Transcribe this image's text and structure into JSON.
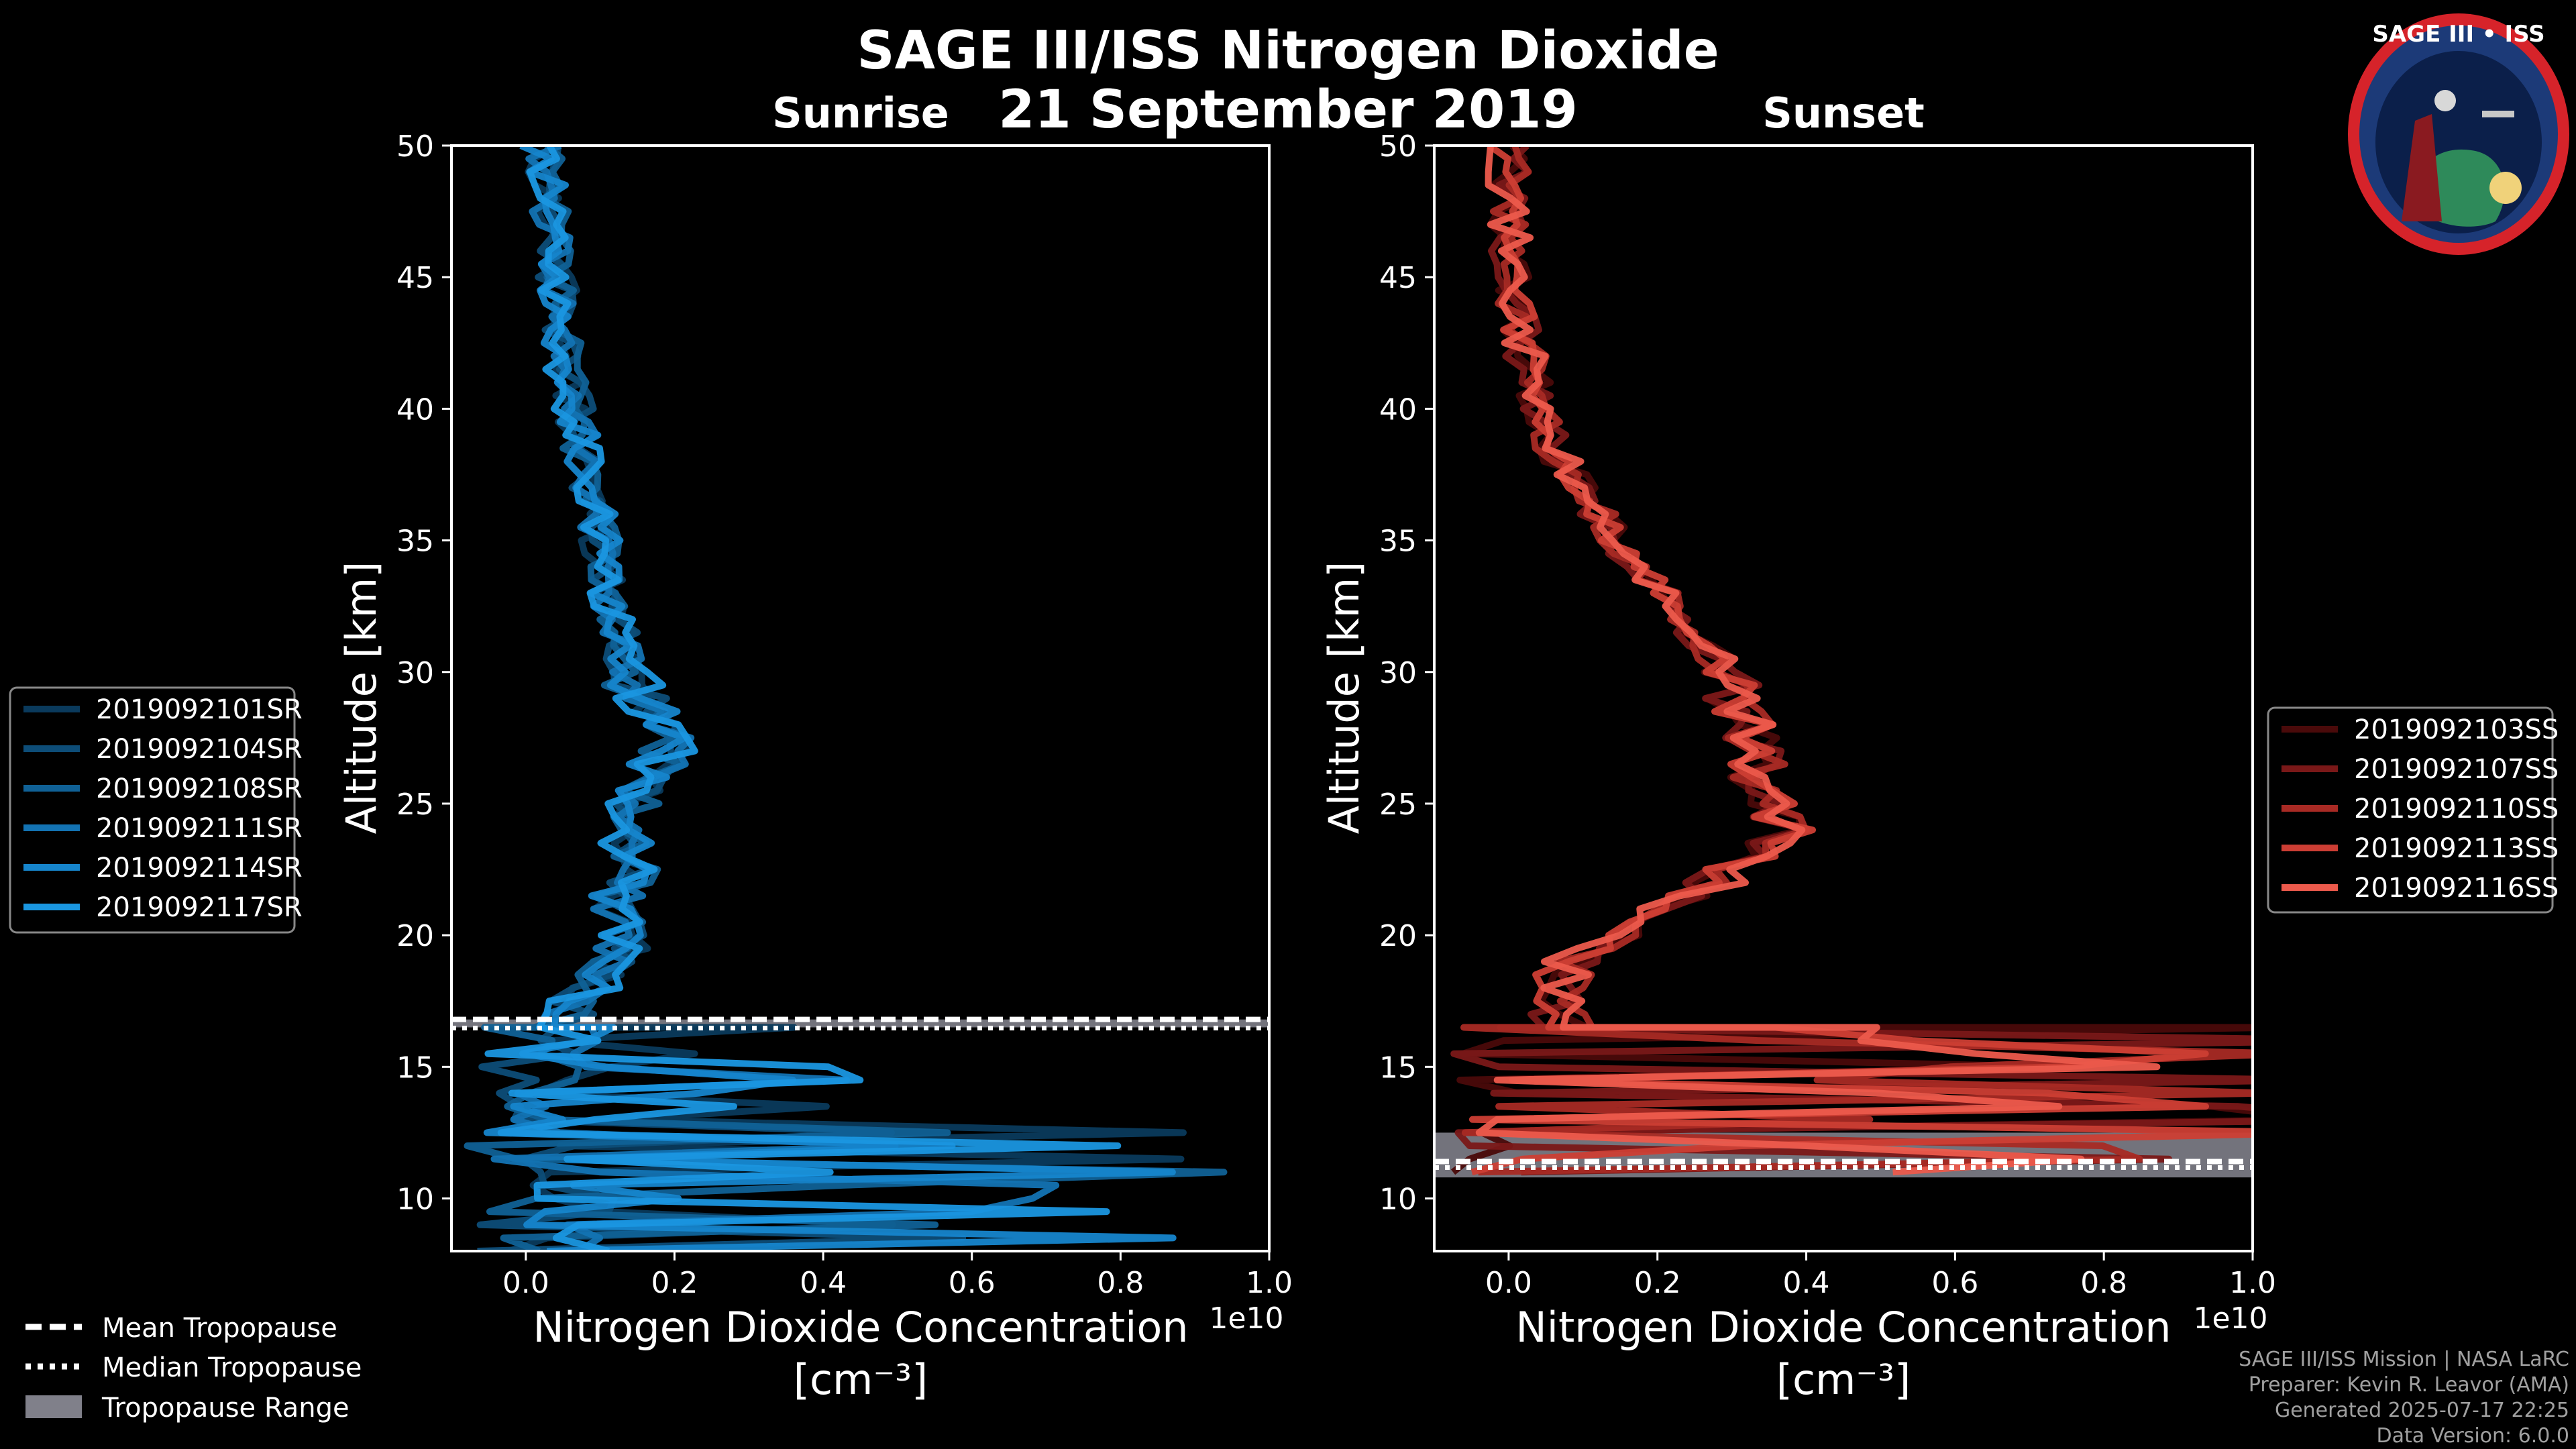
{
  "title": "SAGE III/ISS Nitrogen Dioxide",
  "date": "21 September 2019",
  "logo": {
    "text": "SAGE III • ISS",
    "accent": "#d6232a",
    "ring": "#1c3a78"
  },
  "colors": {
    "background": "#000000",
    "axes": "#ffffff",
    "tropopause_fill": "#80808a"
  },
  "chart_data": [
    {
      "type": "line",
      "panel": "sunrise",
      "title": "Sunrise",
      "xlabel": "Nitrogen Dioxide Concentration",
      "xunit": "[cm⁻³]",
      "ylabel": "Altitude [km]",
      "xlim": [
        -0.1,
        1.0
      ],
      "ylim": [
        8,
        50
      ],
      "xscale_label": "1e10",
      "xticks": [
        "0.0",
        "0.2",
        "0.4",
        "0.6",
        "0.8",
        "1.0"
      ],
      "xtick_values": [
        0,
        0.2,
        0.4,
        0.6,
        0.8,
        1.0
      ],
      "yticks": [
        "10",
        "15",
        "20",
        "25",
        "30",
        "35",
        "40",
        "45",
        "50"
      ],
      "ytick_values": [
        10,
        15,
        20,
        25,
        30,
        35,
        40,
        45,
        50
      ],
      "series": [
        {
          "name": "2019092101SR",
          "color": "#0a3a5c",
          "seed": 11
        },
        {
          "name": "2019092104SR",
          "color": "#0d4d78",
          "seed": 23
        },
        {
          "name": "2019092108SR",
          "color": "#106196",
          "seed": 37
        },
        {
          "name": "2019092111SR",
          "color": "#1373b3",
          "seed": 41
        },
        {
          "name": "2019092114SR",
          "color": "#1685cc",
          "seed": 53
        },
        {
          "name": "2019092117SR",
          "color": "#1a96e0",
          "seed": 67
        }
      ],
      "profile": [
        [
          50,
          0.02
        ],
        [
          46,
          0.04
        ],
        [
          42,
          0.05
        ],
        [
          38,
          0.08
        ],
        [
          35,
          0.1
        ],
        [
          32,
          0.12
        ],
        [
          30,
          0.14
        ],
        [
          28,
          0.17
        ],
        [
          27,
          0.19
        ],
        [
          25,
          0.15
        ],
        [
          23,
          0.14
        ],
        [
          21,
          0.12
        ],
        [
          19,
          0.13
        ],
        [
          17,
          0.05
        ],
        [
          16,
          0.0
        ]
      ],
      "tropopause": {
        "mean": 16.7,
        "median": 16.6,
        "range": [
          16.5,
          16.8
        ]
      }
    },
    {
      "type": "line",
      "panel": "sunset",
      "title": "Sunset",
      "xlabel": "Nitrogen Dioxide Concentration",
      "xunit": "[cm⁻³]",
      "ylabel": "Altitude [km]",
      "xlim": [
        -0.1,
        1.0
      ],
      "ylim": [
        8,
        50
      ],
      "xscale_label": "1e10",
      "xticks": [
        "0.0",
        "0.2",
        "0.4",
        "0.6",
        "0.8",
        "1.0"
      ],
      "xtick_values": [
        0,
        0.2,
        0.4,
        0.6,
        0.8,
        1.0
      ],
      "yticks": [
        "10",
        "15",
        "20",
        "25",
        "30",
        "35",
        "40",
        "45",
        "50"
      ],
      "ytick_values": [
        10,
        15,
        20,
        25,
        30,
        35,
        40,
        45,
        50
      ],
      "series": [
        {
          "name": "2019092103SS",
          "color": "#4a0a0a",
          "seed": 13
        },
        {
          "name": "2019092107SS",
          "color": "#7a1818",
          "seed": 29
        },
        {
          "name": "2019092110SS",
          "color": "#a82a24",
          "seed": 43
        },
        {
          "name": "2019092113SS",
          "color": "#cc3e34",
          "seed": 59
        },
        {
          "name": "2019092116SS",
          "color": "#ec5a4c",
          "seed": 71
        }
      ],
      "profile": [
        [
          50,
          0.0
        ],
        [
          47,
          0.0
        ],
        [
          44,
          0.01
        ],
        [
          41,
          0.03
        ],
        [
          38,
          0.07
        ],
        [
          36,
          0.12
        ],
        [
          34,
          0.17
        ],
        [
          32,
          0.24
        ],
        [
          30,
          0.29
        ],
        [
          28,
          0.32
        ],
        [
          26,
          0.34
        ],
        [
          24,
          0.38
        ],
        [
          22,
          0.28
        ],
        [
          20.5,
          0.17
        ],
        [
          19,
          0.08
        ],
        [
          17.5,
          0.06
        ],
        [
          16,
          0.08
        ]
      ],
      "tropopause": {
        "mean": 11.3,
        "median": 11.3,
        "range": [
          10.8,
          12.5
        ]
      }
    }
  ],
  "legend_bottom": {
    "mean": "Mean Tropopause",
    "median": "Median Tropopause",
    "range": "Tropopause Range"
  },
  "credits": [
    "SAGE III/ISS Mission | NASA LaRC",
    "Preparer: Kevin R. Leavor (AMA)",
    "Generated 2025-07-17 22:25",
    "Data Version: 6.0.0"
  ]
}
